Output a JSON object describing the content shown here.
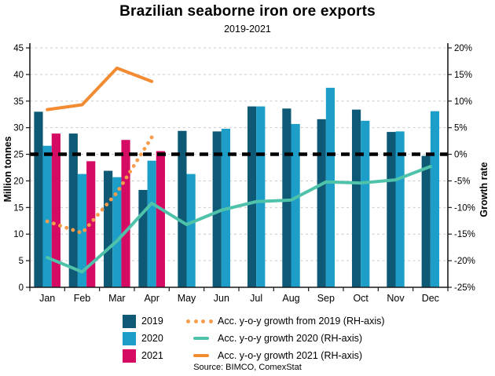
{
  "title": "Brazilian seaborne iron ore exports",
  "subtitle": "2019-2021",
  "source": "Source: BIMCO, ComexStat",
  "chart_data": {
    "type": "bar+line",
    "title": "Brazilian seaborne iron ore exports",
    "subtitle": "2019-2021",
    "categories": [
      "Jan",
      "Feb",
      "Mar",
      "Apr",
      "May",
      "Jun",
      "Jul",
      "Aug",
      "Sep",
      "Oct",
      "Nov",
      "Dec"
    ],
    "left_axis": {
      "label": "Million tonnes",
      "min": 0,
      "max": 45,
      "step": 5
    },
    "right_axis": {
      "label": "Growth rate",
      "min": -25,
      "max": 20,
      "step": 5,
      "suffix": "%"
    },
    "grid": true,
    "legend_position": "bottom",
    "bar_series": [
      {
        "name": "2019",
        "color": "#0e5a76",
        "values": [
          33.0,
          28.9,
          21.9,
          18.3,
          29.4,
          29.3,
          34.0,
          33.6,
          31.6,
          33.4,
          29.2,
          24.7
        ]
      },
      {
        "name": "2020",
        "color": "#1c9ec9",
        "values": [
          26.6,
          21.3,
          20.7,
          23.8,
          21.3,
          29.8,
          34.0,
          30.7,
          37.5,
          31.3,
          29.3,
          33.1
        ]
      },
      {
        "name": "2021",
        "color": "#d40a63",
        "values": [
          28.9,
          23.7,
          27.7,
          25.6,
          null,
          null,
          null,
          null,
          null,
          null,
          null,
          null
        ]
      }
    ],
    "line_series": [
      {
        "name": "Acc. y-o-y growth from 2019 (RH-axis)",
        "axis": "right",
        "style": "dotted",
        "color": "#f79c4b",
        "values": [
          -12.6,
          -14.8,
          -7.2,
          3.2,
          null,
          null,
          null,
          null,
          null,
          null,
          null,
          null
        ]
      },
      {
        "name": "Acc. y-o-y growth 2020 (RH-axis)",
        "axis": "right",
        "style": "solid",
        "color": "#4fc2aa",
        "values": [
          -19.4,
          -22.1,
          -16.3,
          -9.2,
          -13.2,
          -10.5,
          -8.9,
          -8.6,
          -5.2,
          -5.4,
          -4.8,
          -2.3
        ]
      },
      {
        "name": "Acc. y-o-y growth 2021 (RH-axis)",
        "axis": "right",
        "style": "solid",
        "color": "#f28b32",
        "values": [
          8.4,
          9.3,
          16.2,
          13.7,
          null,
          null,
          null,
          null,
          null,
          null,
          null,
          null
        ]
      }
    ],
    "reference_line": {
      "axis": "right",
      "value": 0,
      "style": "dashed",
      "color": "#000000"
    }
  }
}
